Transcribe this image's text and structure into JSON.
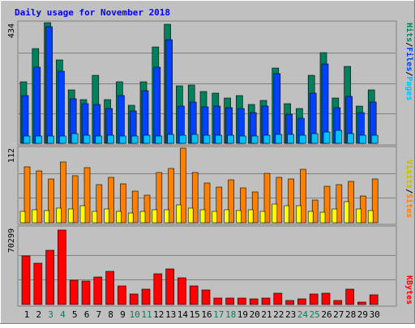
{
  "title": "Daily usage for November 2018",
  "labels": {
    "pages": "Pages",
    "files": "Files",
    "hits": "Hits",
    "sites": "Sites",
    "visits": "Visits",
    "kbytes": "KBytes",
    "sep": "/"
  },
  "colors": {
    "background": "#c0c0c0",
    "title": "#0000ff",
    "hits": "#00805c",
    "files": "#0040ff",
    "pages": "#00c0ff",
    "visits": "#ffff00",
    "sites": "#ff8000",
    "kbytes": "#ff0000",
    "weekend_day": "#00805c",
    "weekday": "#000000"
  },
  "chart_data": [
    {
      "type": "bar",
      "title": "Daily usage for November 2018",
      "categories": [
        "1",
        "2",
        "3",
        "4",
        "5",
        "6",
        "7",
        "8",
        "9",
        "10",
        "11",
        "12",
        "13",
        "14",
        "15",
        "16",
        "17",
        "18",
        "19",
        "20",
        "21",
        "22",
        "23",
        "24",
        "25",
        "26",
        "27",
        "28",
        "29",
        "30"
      ],
      "weekend_days": [
        "3",
        "4",
        "10",
        "11",
        "17",
        "18",
        "24",
        "25"
      ],
      "ymax_label": "434",
      "ylim": [
        0,
        434
      ],
      "series": [
        {
          "name": "Hits",
          "values": [
            220,
            342,
            434,
            299,
            192,
            158,
            245,
            156,
            221,
            136,
            222,
            346,
            427,
            207,
            209,
            185,
            182,
            162,
            171,
            140,
            153,
            270,
            144,
            124,
            244,
            325,
            164,
            278,
            135,
            191
          ]
        },
        {
          "name": "Files",
          "values": [
            172,
            274,
            418,
            259,
            161,
            144,
            139,
            124,
            172,
            117,
            188,
            275,
            373,
            134,
            150,
            130,
            134,
            129,
            126,
            112,
            135,
            250,
            105,
            90,
            180,
            285,
            127,
            168,
            111,
            150
          ]
        },
        {
          "name": "Pages",
          "values": [
            27,
            27,
            26,
            26,
            34,
            28,
            26,
            28,
            27,
            26,
            29,
            25,
            33,
            30,
            32,
            29,
            28,
            28,
            26,
            27,
            28,
            33,
            32,
            30,
            34,
            40,
            47,
            36,
            30,
            30
          ]
        }
      ]
    },
    {
      "type": "bar",
      "categories": [
        "1",
        "2",
        "3",
        "4",
        "5",
        "6",
        "7",
        "8",
        "9",
        "10",
        "11",
        "12",
        "13",
        "14",
        "15",
        "16",
        "17",
        "18",
        "19",
        "20",
        "21",
        "22",
        "23",
        "24",
        "25",
        "26",
        "27",
        "28",
        "29",
        "30"
      ],
      "ymax_label": "112",
      "ylim": [
        0,
        112
      ],
      "series": [
        {
          "name": "Sites",
          "values": [
            84,
            78,
            66,
            91,
            70,
            83,
            57,
            68,
            58,
            47,
            41,
            75,
            81,
            112,
            76,
            60,
            54,
            64,
            52,
            46,
            74,
            68,
            66,
            80,
            34,
            55,
            57,
            62,
            40,
            66
          ]
        },
        {
          "name": "Visits",
          "values": [
            17,
            19,
            18,
            22,
            21,
            25,
            17,
            21,
            17,
            15,
            17,
            20,
            19,
            27,
            22,
            19,
            17,
            19,
            18,
            19,
            17,
            28,
            26,
            25,
            17,
            16,
            21,
            32,
            21,
            18
          ]
        }
      ]
    },
    {
      "type": "bar",
      "categories": [
        "1",
        "2",
        "3",
        "4",
        "5",
        "6",
        "7",
        "8",
        "9",
        "10",
        "11",
        "12",
        "13",
        "14",
        "15",
        "16",
        "17",
        "18",
        "19",
        "20",
        "21",
        "22",
        "23",
        "24",
        "25",
        "26",
        "27",
        "28",
        "29",
        "30"
      ],
      "ymax_label": "70299",
      "ylim": [
        0,
        70299
      ],
      "series": [
        {
          "name": "KBytes",
          "values": [
            45600,
            39100,
            50900,
            70299,
            22800,
            21800,
            26200,
            31400,
            17800,
            9700,
            14700,
            29200,
            33800,
            24900,
            17500,
            13700,
            5900,
            6400,
            5900,
            5100,
            6300,
            10600,
            3700,
            5300,
            10100,
            10600,
            3800,
            14300,
            2400,
            8800
          ]
        }
      ]
    }
  ]
}
